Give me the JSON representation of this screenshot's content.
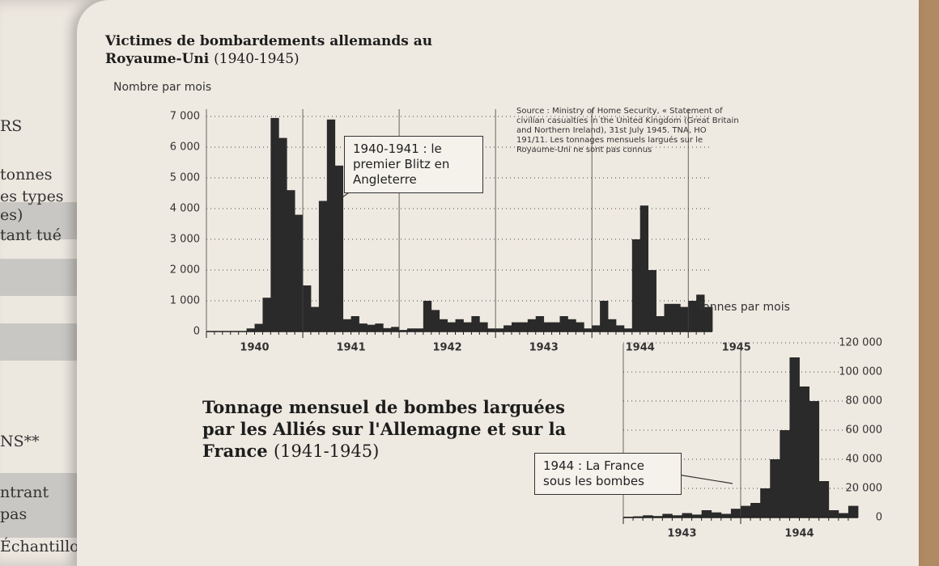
{
  "left_page": {
    "lines": [
      "RS",
      "tonnes",
      "es types",
      "es)",
      "tant tué",
      "NS**",
      "ntrant",
      "pas",
      "Échantillon B"
    ]
  },
  "chart_data": [
    {
      "type": "bar",
      "title": "Victimes de bombardements allemands au Royaume-Uni",
      "subtitle": "(1940-1945)",
      "y_label": "Nombre par mois",
      "annotation": "1940-1941 : le premier Blitz en Angleterre",
      "source": "Source : Ministry of Home Security, « Statement of civilian casualties in the United Kingdom (Great Britain and Northern Ireland), 31st July 1945. TNA, HO 191/11. Les tonnages mensuels largués sur le Royaume-Uni ne sont pas connus",
      "color": "#2a2a2a",
      "categories": [
        "1940",
        null,
        null,
        null,
        null,
        null,
        null,
        null,
        null,
        null,
        null,
        null,
        "1941",
        null,
        null,
        null,
        null,
        null,
        null,
        null,
        null,
        null,
        null,
        null,
        "1942",
        null,
        null,
        null,
        null,
        null,
        null,
        null,
        null,
        null,
        null,
        null,
        "1943",
        null,
        null,
        null,
        null,
        null,
        null,
        null,
        null,
        null,
        null,
        null,
        "1944",
        null,
        null,
        null,
        null,
        null,
        null,
        null,
        null,
        null,
        null,
        null,
        "1945",
        null,
        null
      ],
      "values": [
        0,
        0,
        0,
        0,
        0,
        100,
        250,
        1100,
        6950,
        6300,
        4600,
        3800,
        1500,
        800,
        4250,
        6900,
        5400,
        400,
        500,
        260,
        220,
        260,
        110,
        150,
        50,
        100,
        100,
        1000,
        700,
        400,
        300,
        400,
        300,
        500,
        300,
        100,
        100,
        200,
        300,
        300,
        400,
        500,
        300,
        300,
        500,
        400,
        300,
        100,
        200,
        1000,
        400,
        200,
        100,
        3000,
        4100,
        2000,
        500,
        900,
        900,
        800,
        1000,
        1200,
        800
      ],
      "ylim": [
        0,
        7500
      ],
      "yticks": [
        0,
        {
          "value": 1000,
          "label": "1 000"
        },
        {
          "value": 2000,
          "label": "2 000"
        },
        {
          "value": 3000,
          "label": "3 000"
        },
        {
          "value": 4000,
          "label": "4 000"
        },
        {
          "value": 5000,
          "label": "5 000"
        },
        {
          "value": 6000,
          "label": "6 000"
        },
        {
          "value": 7000,
          "label": "7 000"
        }
      ],
      "grid": true
    },
    {
      "type": "bar",
      "title": "Tonnage mensuel de bombes larguées par les Alliés sur l'Allemagne et sur la France",
      "subtitle": "(1941-1945)",
      "y_label": "Tonnes par mois",
      "annotation": "1944 : La France sous les bombes",
      "color": "#2a2a2a",
      "categories": [
        "1943",
        null,
        null,
        null,
        null,
        null,
        null,
        null,
        null,
        null,
        null,
        null,
        "1944",
        null,
        null,
        null,
        null,
        null,
        null,
        null,
        null,
        null,
        null,
        null
      ],
      "values": [
        500,
        800,
        1500,
        1000,
        2500,
        1500,
        3000,
        2000,
        5000,
        3500,
        2500,
        6000,
        8000,
        10000,
        20000,
        40000,
        60000,
        110000,
        90000,
        80000,
        25000,
        5000,
        3000,
        8000
      ],
      "ylim": [
        0,
        125000
      ],
      "yticks": [
        0,
        {
          "value": 20000,
          "label": "20 000"
        },
        {
          "value": 40000,
          "label": "40 000"
        },
        {
          "value": 60000,
          "label": "60 000"
        },
        {
          "value": 80000,
          "label": "80 000"
        },
        {
          "value": 100000,
          "label": "100 000"
        },
        {
          "value": 120000,
          "label": "120 000"
        }
      ],
      "grid": true
    }
  ]
}
